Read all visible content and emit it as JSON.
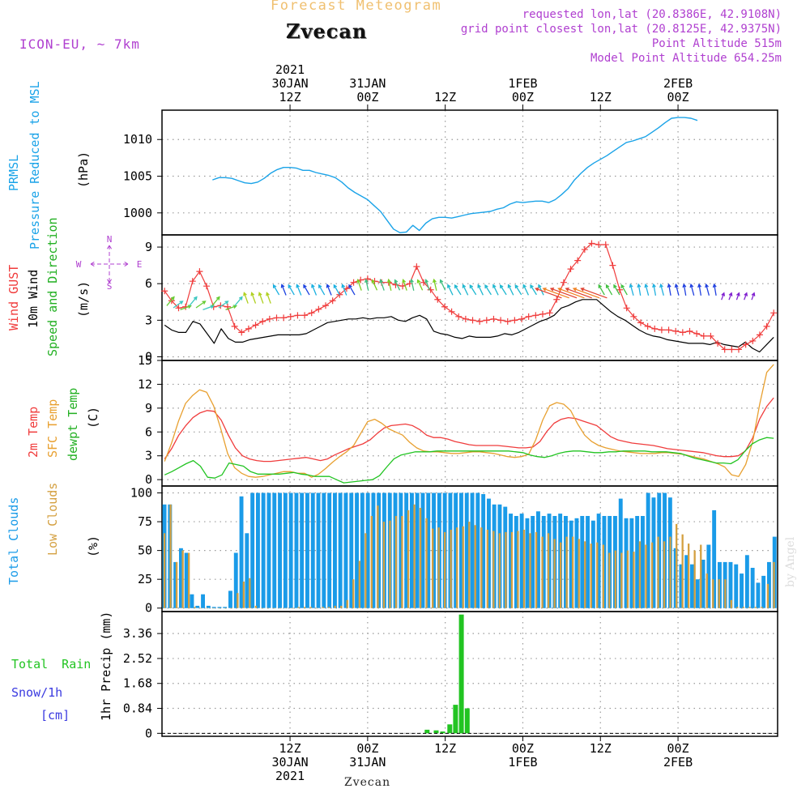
{
  "header": {
    "top_title": "Forecast Meteogram",
    "station": "Zvecan",
    "model": "ICON-EU, ~ 7km",
    "requested": "requested lon,lat (20.8386E, 42.9108N)",
    "grid_point": "grid point closest lon,lat (20.8125E, 42.9375N)",
    "point_altitude": "Point Altitude 515m",
    "model_altitude": "Model Point Altitude 654.25m",
    "footer_station": "Zvecan",
    "watermark": "by Angel"
  },
  "colors": {
    "pressure": "#1aa3e8",
    "gust": "#f03c3c",
    "wind10m": "#000000",
    "temp2m": "#f03c3c",
    "sfc": "#e8a030",
    "dewpt": "#22c422",
    "total_clouds": "#1a9be8",
    "low_clouds": "#d4a040",
    "rain": "#22c422",
    "snow": "#3a3ae0",
    "purple": "#b040d0",
    "title_orange": "#f0c070"
  },
  "time_axis": {
    "top_ticks": [
      {
        "h": 12,
        "lines": [
          "2021",
          "30JAN",
          "12Z"
        ]
      },
      {
        "h": 24,
        "lines": [
          "31JAN",
          "00Z"
        ]
      },
      {
        "h": 36,
        "lines": [
          "12Z"
        ]
      },
      {
        "h": 48,
        "lines": [
          "1FEB",
          "00Z"
        ]
      },
      {
        "h": 60,
        "lines": [
          "12Z"
        ]
      },
      {
        "h": 72,
        "lines": [
          "2FEB",
          "00Z"
        ]
      }
    ],
    "bottom_ticks": [
      {
        "h": 12,
        "lines": [
          "12Z",
          "30JAN",
          "2021"
        ]
      },
      {
        "h": 24,
        "lines": [
          "00Z",
          "31JAN"
        ]
      },
      {
        "h": 36,
        "lines": [
          "12Z"
        ]
      },
      {
        "h": 48,
        "lines": [
          "00Z",
          "1FEB"
        ]
      },
      {
        "h": 60,
        "lines": [
          "12Z"
        ]
      },
      {
        "h": 72,
        "lines": [
          "00Z",
          "2FEB"
        ]
      }
    ]
  },
  "chart_data": [
    {
      "type": "line",
      "panel": "pressure",
      "ylabel_lines": [
        "PRMSL",
        "Pressure Reduced to MSL"
      ],
      "unit": "(hPa)",
      "yticks": [
        1000,
        1005,
        1010
      ],
      "ylim": [
        997,
        1014
      ],
      "x_hours_from_start": [
        0,
        1,
        2,
        3,
        4,
        5,
        6,
        7,
        8,
        9,
        10,
        11,
        12,
        13,
        14,
        15,
        16,
        17,
        18,
        19,
        20,
        21,
        22,
        23,
        24,
        25,
        26,
        27,
        28,
        29,
        30,
        31,
        32,
        33,
        34,
        35,
        36,
        37,
        38,
        39,
        40,
        41,
        42,
        43,
        44,
        45,
        46,
        47,
        48,
        49,
        50,
        51,
        52,
        53,
        54,
        55,
        56,
        57,
        58,
        59,
        60,
        61,
        62,
        63,
        64,
        65,
        66,
        67,
        68,
        69,
        70,
        71,
        72,
        73,
        74,
        75,
        76,
        77
      ],
      "series": [
        {
          "values": [
            1004.5,
            1004.8,
            1004.8,
            1004.7,
            1004.4,
            1004.1,
            1004,
            1004.2,
            1004.7,
            1005.4,
            1005.9,
            1006.2,
            1006.2,
            1006.1,
            1005.8,
            1005.8,
            1005.5,
            1005.3,
            1005.1,
            1004.8,
            1004.2,
            1003.4,
            1002.8,
            1002.3,
            1001.8,
            1001,
            1000.2,
            999,
            997.8,
            997.3,
            997.4,
            998.3,
            997.6,
            998.6,
            999.2,
            999.4,
            999.4,
            999.3,
            999.5,
            999.7,
            999.9,
            1000,
            1000.1,
            1000.2,
            1000.5,
            1000.7,
            1001.2,
            1001.5,
            1001.4,
            1001.5,
            1001.6,
            1001.6,
            1001.4,
            1001.8,
            1002.5,
            1003.3,
            1004.5,
            1005.4,
            1006.2,
            1006.8,
            1007.3,
            1007.8,
            1008.4,
            1009,
            1009.6,
            1009.8,
            1010.1,
            1010.4,
            1011,
            1011.6,
            1012.3,
            1012.9,
            1013,
            1013,
            1012.9,
            1012.6
          ]
        }
      ]
    },
    {
      "type": "line",
      "panel": "wind",
      "ylabel_lines": [
        "Wind GUST",
        "10m Wind",
        "Speed and Direction"
      ],
      "unit": "(m/s)",
      "compass": {
        "n": "N",
        "e": "E",
        "s": "S",
        "w": "W"
      },
      "yticks": [
        0,
        3,
        6,
        9
      ],
      "ylim": [
        -0.3,
        10
      ],
      "series": [
        {
          "name": "Wind GUST",
          "values": [
            5.4,
            4.6,
            4,
            4.1,
            6.2,
            7,
            5.8,
            4.1,
            4.2,
            4.1,
            2.5,
            2,
            2.3,
            2.6,
            2.9,
            3.1,
            3.2,
            3.2,
            3.3,
            3.4,
            3.4,
            3.6,
            3.9,
            4.2,
            4.6,
            5.1,
            5.6,
            6.1,
            6.3,
            6.4,
            6.2,
            6.1,
            6.1,
            5.9,
            5.8,
            6,
            7.4,
            6.1,
            5.5,
            4.7,
            4.1,
            3.7,
            3.3,
            3.1,
            3,
            2.9,
            3,
            3.1,
            3,
            2.9,
            3,
            3.1,
            3.3,
            3.4,
            3.5,
            3.6,
            4.7,
            6.1,
            7.2,
            7.9,
            8.8,
            9.3,
            9.2,
            9.2,
            7.5,
            5.5,
            4,
            3.3,
            2.8,
            2.5,
            2.3,
            2.2,
            2.2,
            2.1,
            2,
            2.1,
            1.9,
            1.7,
            1.7,
            1.1,
            0.6,
            0.6,
            0.6,
            1,
            1.3,
            1.8,
            2.5,
            3.6
          ]
        },
        {
          "name": "10m Wind",
          "values": [
            2.6,
            2.2,
            2,
            2,
            2.9,
            2.7,
            1.9,
            1.1,
            2.3,
            1.5,
            1.2,
            1.2,
            1.4,
            1.5,
            1.6,
            1.7,
            1.8,
            1.8,
            1.8,
            1.8,
            1.9,
            2.2,
            2.5,
            2.8,
            2.9,
            3,
            3.1,
            3.1,
            3.2,
            3.1,
            3.2,
            3.2,
            3.3,
            3,
            2.9,
            3.2,
            3.4,
            3.1,
            2.1,
            1.9,
            1.8,
            1.6,
            1.5,
            1.7,
            1.6,
            1.6,
            1.6,
            1.7,
            1.9,
            1.8,
            2,
            2.3,
            2.6,
            2.9,
            3.1,
            3.4,
            4,
            4.2,
            4.5,
            4.7,
            4.7,
            4.7,
            4.2,
            3.7,
            3.3,
            3,
            2.6,
            2.2,
            1.9,
            1.7,
            1.6,
            1.4,
            1.3,
            1.2,
            1.1,
            1.1,
            1.1,
            1,
            1.2,
            1,
            0.9,
            0.8,
            1.2,
            0.7,
            0.4,
            1,
            1.6
          ]
        }
      ]
    },
    {
      "type": "line",
      "panel": "temperature",
      "ylabel_lines": [
        "2m Temp",
        "SFC Temp",
        "dewpt Temp"
      ],
      "unit": "(C)",
      "yticks": [
        0,
        3,
        6,
        9,
        12,
        15
      ],
      "ylim": [
        -0.8,
        15
      ],
      "series": [
        {
          "name": "2m Temp",
          "values": [
            2.6,
            3.9,
            5.6,
            6.8,
            7.8,
            8.4,
            8.7,
            8.6,
            7.5,
            5.6,
            4,
            3,
            2.6,
            2.4,
            2.3,
            2.3,
            2.4,
            2.5,
            2.6,
            2.7,
            2.8,
            2.6,
            2.4,
            2.6,
            3.1,
            3.5,
            3.9,
            4.2,
            4.5,
            5,
            5.8,
            6.5,
            6.8,
            6.9,
            7,
            6.8,
            6.3,
            5.6,
            5.3,
            5.3,
            5.1,
            4.8,
            4.6,
            4.4,
            4.3,
            4.3,
            4.3,
            4.3,
            4.2,
            4.1,
            4,
            4,
            4.1,
            4.8,
            6.1,
            7.1,
            7.6,
            7.8,
            7.7,
            7.4,
            7.1,
            6.8,
            6.1,
            5.4,
            5,
            4.8,
            4.6,
            4.5,
            4.4,
            4.3,
            4.1,
            3.9,
            3.8,
            3.7,
            3.6,
            3.5,
            3.4,
            3.2,
            3,
            2.9,
            2.9,
            3,
            3.6,
            5.2,
            7.6,
            9.2,
            10.3
          ]
        },
        {
          "name": "SFC Temp",
          "values": [
            2.3,
            4.6,
            7.4,
            9.6,
            10.6,
            11.3,
            11,
            9.3,
            6.5,
            3.3,
            1.5,
            0.8,
            0.4,
            0.3,
            0.4,
            0.6,
            0.8,
            1,
            1,
            0.8,
            0.8,
            0.3,
            0.7,
            1.4,
            2.2,
            2.9,
            3.5,
            4.3,
            5.8,
            7.3,
            7.6,
            7.1,
            6.4,
            6,
            5.6,
            4.7,
            4,
            3.6,
            3.5,
            3.5,
            3.4,
            3.3,
            3.3,
            3.4,
            3.5,
            3.5,
            3.4,
            3.3,
            3.1,
            2.9,
            2.8,
            2.9,
            3.2,
            5,
            7.5,
            9.3,
            9.7,
            9.5,
            8.7,
            7,
            5.6,
            4.8,
            4.3,
            4,
            3.8,
            3.6,
            3.5,
            3.4,
            3.3,
            3.3,
            3.3,
            3.4,
            3.4,
            3.3,
            3.2,
            3,
            2.8,
            2.6,
            2.3,
            2,
            1.6,
            0.6,
            0.4,
            1.9,
            4.8,
            9.5,
            13.5,
            14.5
          ]
        },
        {
          "name": "dewpt Temp",
          "values": [
            0.6,
            1,
            1.5,
            2,
            2.4,
            1.7,
            0.3,
            0.2,
            0.6,
            2.1,
            1.9,
            1.7,
            1,
            0.7,
            0.7,
            0.7,
            0.7,
            0.8,
            0.9,
            0.7,
            0.6,
            0.4,
            0.4,
            0.4,
            0,
            -0.4,
            -0.3,
            -0.2,
            -0.1,
            0,
            0.5,
            1.6,
            2.6,
            3.1,
            3.3,
            3.5,
            3.5,
            3.5,
            3.6,
            3.6,
            3.6,
            3.6,
            3.6,
            3.6,
            3.6,
            3.6,
            3.6,
            3.6,
            3.6,
            3.5,
            3.4,
            3.1,
            2.9,
            2.8,
            3,
            3.3,
            3.5,
            3.6,
            3.6,
            3.5,
            3.4,
            3.4,
            3.5,
            3.5,
            3.6,
            3.6,
            3.6,
            3.6,
            3.5,
            3.5,
            3.5,
            3.4,
            3.3,
            3,
            2.7,
            2.5,
            2.3,
            2.1,
            2.1,
            2,
            2.5,
            3.6,
            4.5,
            5,
            5.3,
            5.2
          ]
        }
      ]
    },
    {
      "type": "bar",
      "panel": "clouds",
      "ylabel_lines": [
        "Total Clouds",
        "Low Clouds"
      ],
      "unit": "(%)",
      "yticks": [
        0,
        25,
        50,
        75,
        100
      ],
      "ylim": [
        -3,
        106
      ],
      "series": [
        {
          "name": "Total Clouds",
          "values": [
            90,
            90,
            40,
            52,
            48,
            12,
            2,
            12,
            2,
            1,
            1,
            1,
            15,
            48,
            97,
            65,
            100,
            100,
            100,
            100,
            100,
            100,
            100,
            100,
            100,
            100,
            100,
            100,
            100,
            100,
            100,
            100,
            100,
            100,
            100,
            100,
            100,
            100,
            100,
            100,
            100,
            100,
            100,
            100,
            100,
            100,
            100,
            100,
            100,
            100,
            100,
            100,
            100,
            100,
            100,
            100,
            100,
            100,
            99,
            95,
            90,
            90,
            88,
            82,
            80,
            82,
            78,
            80,
            84,
            80,
            82,
            80,
            82,
            80,
            76,
            78,
            80,
            80,
            76,
            82,
            80,
            80,
            80,
            95,
            78,
            78,
            80,
            80,
            100,
            96,
            100,
            100,
            96,
            52,
            38,
            46,
            38,
            25,
            42,
            55,
            85,
            40,
            40,
            40,
            38,
            30,
            46,
            35,
            22,
            28,
            40,
            62
          ]
        },
        {
          "name": "Low Clouds",
          "values": [
            65,
            90,
            40,
            50,
            48,
            1,
            0,
            0,
            0,
            0,
            0,
            0,
            13,
            23,
            26,
            2,
            0,
            0,
            0,
            0,
            0,
            0,
            1,
            1,
            1,
            0,
            1,
            1,
            2,
            2,
            7,
            25,
            41,
            65,
            80,
            89,
            75,
            76,
            80,
            80,
            85,
            90,
            87,
            78,
            69,
            70,
            66,
            68,
            70,
            71,
            75,
            72,
            70,
            68,
            67,
            65,
            66,
            66,
            67,
            68,
            65,
            66,
            62,
            65,
            60,
            57,
            62,
            62,
            60,
            58,
            56,
            57,
            55,
            48,
            50,
            48,
            50,
            49,
            58,
            55,
            57,
            62,
            58,
            62,
            73,
            64,
            56,
            50,
            55,
            30,
            25,
            25,
            25,
            7,
            1,
            1,
            1,
            1,
            1,
            21,
            40
          ]
        }
      ]
    },
    {
      "type": "bar",
      "panel": "precip",
      "ylabel_lines": [
        "Total Rain",
        "Snow/1h",
        "[cm]"
      ],
      "unit": "1hr Precip (mm)",
      "yticks": [
        "0",
        "0.84",
        "1.68",
        "2.52",
        "3.36"
      ],
      "ylim": [
        -0.1,
        4.1
      ],
      "series": [
        {
          "name": "Total Rain",
          "x_hours_from_start": [
            33.2,
            34.6,
            35.6,
            36.7,
            37.6,
            38.5,
            39.4
          ],
          "values": [
            0.12,
            0.1,
            0.06,
            0.3,
            0.96,
            4.0,
            0.84
          ]
        }
      ]
    }
  ]
}
